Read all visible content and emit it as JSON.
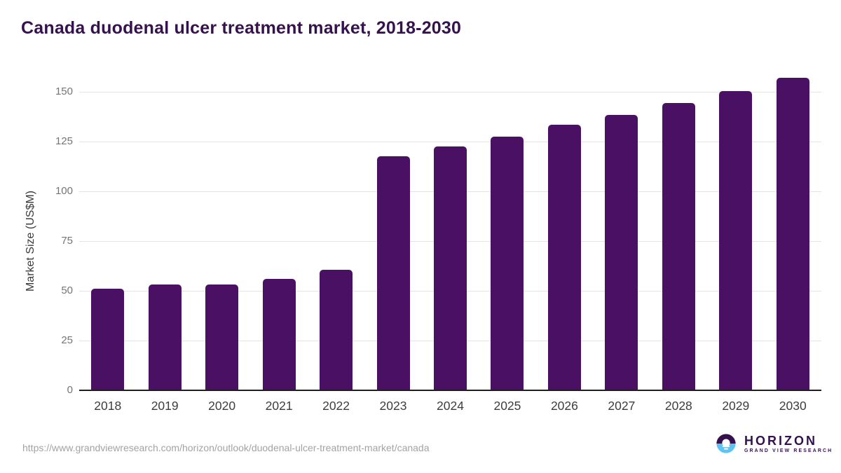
{
  "title": "Canada duodenal ulcer treatment market, 2018-2030",
  "chart_data": {
    "type": "bar",
    "title": "Canada duodenal ulcer treatment market, 2018-2030",
    "categories": [
      "2018",
      "2019",
      "2020",
      "2021",
      "2022",
      "2023",
      "2024",
      "2025",
      "2026",
      "2027",
      "2028",
      "2029",
      "2030"
    ],
    "values": [
      51,
      53,
      53,
      56,
      60.5,
      117.5,
      122.5,
      127.5,
      133.5,
      138.5,
      144.5,
      150.5,
      157
    ],
    "xlabel": "",
    "ylabel": "Market Size (US$M)",
    "yticks": [
      0,
      25,
      50,
      75,
      100,
      125,
      150
    ],
    "ylim": [
      0,
      162
    ],
    "grid": true,
    "legend": "none",
    "bar_color": "#4a1064"
  },
  "colors": {
    "bar": "#4a1064",
    "title_text": "#35124e",
    "gridline": "#e4e4e4",
    "axis_line": "#1f1f1f",
    "y_tick_text": "#757575",
    "x_label_text": "#3d3d3d",
    "url_text": "#a3a3a3",
    "logo_purple": "#32114d",
    "logo_blue": "#5fc3f1"
  },
  "footer": {
    "source_url": "https://www.grandviewresearch.com/horizon/outlook/duodenal-ulcer-treatment-market/canada",
    "logo": {
      "name": "HORIZON",
      "subtitle": "GRAND VIEW RESEARCH"
    }
  }
}
